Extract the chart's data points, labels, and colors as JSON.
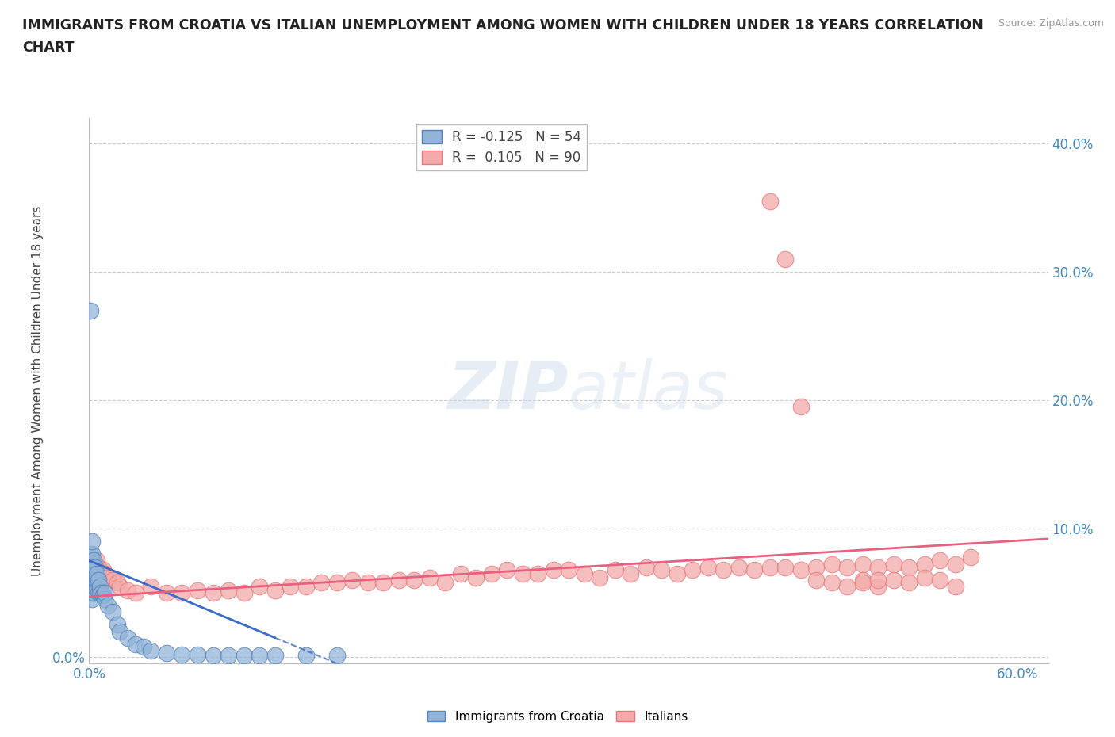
{
  "title_line1": "IMMIGRANTS FROM CROATIA VS ITALIAN UNEMPLOYMENT AMONG WOMEN WITH CHILDREN UNDER 18 YEARS CORRELATION",
  "title_line2": "CHART",
  "source_text": "Source: ZipAtlas.com",
  "ylabel": "Unemployment Among Women with Children Under 18 years",
  "xlim": [
    0.0,
    0.62
  ],
  "ylim": [
    -0.005,
    0.42
  ],
  "xticks": [
    0.0,
    0.1,
    0.2,
    0.3,
    0.4,
    0.5,
    0.6
  ],
  "xticklabels": [
    "0.0%",
    "",
    "",
    "",
    "",
    "",
    "60.0%"
  ],
  "yticks": [
    0.0,
    0.1,
    0.2,
    0.3,
    0.4
  ],
  "yticklabels_left": [
    "0.0%",
    "",
    "",
    "",
    ""
  ],
  "yticklabels_right": [
    "",
    "10.0%",
    "20.0%",
    "30.0%",
    "40.0%"
  ],
  "legend_labels": [
    "Immigrants from Croatia",
    "Italians"
  ],
  "legend_R": [
    -0.125,
    0.105
  ],
  "legend_N": [
    54,
    90
  ],
  "croatia_color": "#92B4D8",
  "croatia_edge_color": "#5580B8",
  "italian_color": "#F4AAAA",
  "italian_edge_color": "#E87878",
  "croatia_line_color": "#3A6BC8",
  "italian_line_color": "#E86080",
  "watermark": "ZIPatlas",
  "background_color": "#ffffff",
  "croatia_x": [
    0.001,
    0.001,
    0.001,
    0.001,
    0.001,
    0.001,
    0.002,
    0.002,
    0.002,
    0.002,
    0.002,
    0.002,
    0.002,
    0.002,
    0.003,
    0.003,
    0.003,
    0.003,
    0.003,
    0.003,
    0.004,
    0.004,
    0.004,
    0.004,
    0.005,
    0.005,
    0.005,
    0.006,
    0.006,
    0.007,
    0.007,
    0.008,
    0.009,
    0.01,
    0.01,
    0.012,
    0.015,
    0.018,
    0.02,
    0.025,
    0.03,
    0.035,
    0.04,
    0.05,
    0.06,
    0.07,
    0.08,
    0.09,
    0.1,
    0.11,
    0.12,
    0.14,
    0.16,
    0.001
  ],
  "croatia_y": [
    0.05,
    0.06,
    0.065,
    0.07,
    0.075,
    0.08,
    0.045,
    0.055,
    0.06,
    0.065,
    0.07,
    0.075,
    0.08,
    0.09,
    0.05,
    0.055,
    0.06,
    0.065,
    0.07,
    0.075,
    0.055,
    0.06,
    0.065,
    0.07,
    0.055,
    0.06,
    0.065,
    0.05,
    0.06,
    0.05,
    0.055,
    0.05,
    0.048,
    0.045,
    0.05,
    0.04,
    0.035,
    0.025,
    0.02,
    0.015,
    0.01,
    0.008,
    0.005,
    0.003,
    0.002,
    0.002,
    0.001,
    0.001,
    0.001,
    0.001,
    0.001,
    0.001,
    0.001,
    0.27
  ],
  "italian_x": [
    0.001,
    0.002,
    0.002,
    0.003,
    0.003,
    0.004,
    0.004,
    0.005,
    0.005,
    0.006,
    0.006,
    0.007,
    0.008,
    0.009,
    0.01,
    0.012,
    0.015,
    0.018,
    0.02,
    0.025,
    0.03,
    0.04,
    0.05,
    0.06,
    0.07,
    0.08,
    0.09,
    0.1,
    0.11,
    0.12,
    0.13,
    0.14,
    0.15,
    0.16,
    0.17,
    0.18,
    0.19,
    0.2,
    0.21,
    0.22,
    0.23,
    0.24,
    0.25,
    0.26,
    0.27,
    0.28,
    0.29,
    0.3,
    0.31,
    0.32,
    0.33,
    0.34,
    0.35,
    0.36,
    0.37,
    0.38,
    0.39,
    0.4,
    0.41,
    0.42,
    0.43,
    0.44,
    0.45,
    0.46,
    0.47,
    0.48,
    0.49,
    0.5,
    0.51,
    0.52,
    0.53,
    0.54,
    0.55,
    0.56,
    0.57,
    0.5,
    0.51,
    0.52,
    0.53,
    0.54,
    0.44,
    0.45,
    0.46,
    0.47,
    0.48,
    0.49,
    0.5,
    0.51,
    0.55,
    0.56
  ],
  "italian_y": [
    0.065,
    0.06,
    0.07,
    0.062,
    0.068,
    0.065,
    0.072,
    0.068,
    0.075,
    0.065,
    0.07,
    0.068,
    0.065,
    0.068,
    0.065,
    0.062,
    0.06,
    0.058,
    0.055,
    0.052,
    0.05,
    0.055,
    0.05,
    0.05,
    0.052,
    0.05,
    0.052,
    0.05,
    0.055,
    0.052,
    0.055,
    0.055,
    0.058,
    0.058,
    0.06,
    0.058,
    0.058,
    0.06,
    0.06,
    0.062,
    0.058,
    0.065,
    0.062,
    0.065,
    0.068,
    0.065,
    0.065,
    0.068,
    0.068,
    0.065,
    0.062,
    0.068,
    0.065,
    0.07,
    0.068,
    0.065,
    0.068,
    0.07,
    0.068,
    0.07,
    0.068,
    0.07,
    0.07,
    0.068,
    0.07,
    0.072,
    0.07,
    0.072,
    0.07,
    0.072,
    0.07,
    0.072,
    0.075,
    0.072,
    0.078,
    0.06,
    0.055,
    0.06,
    0.058,
    0.062,
    0.355,
    0.31,
    0.195,
    0.06,
    0.058,
    0.055,
    0.058,
    0.06,
    0.06,
    0.055
  ],
  "croatia_trend_x": [
    0.0,
    0.17
  ],
  "croatia_trend_y_start": 0.075,
  "croatia_trend_y_end": -0.01,
  "croatia_trend_solid_end": 0.12,
  "italian_trend_x": [
    0.0,
    0.62
  ],
  "italian_trend_y_start": 0.047,
  "italian_trend_y_end": 0.092
}
